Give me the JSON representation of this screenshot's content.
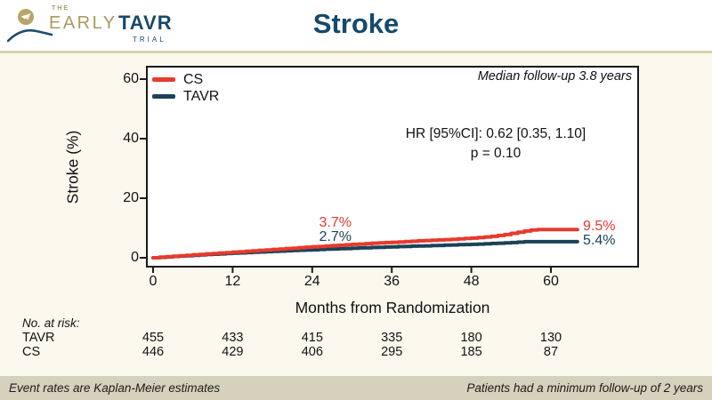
{
  "header": {
    "logo": {
      "the": "THE",
      "early": "EARLY",
      "tavr": "TAVR",
      "trial": "TRIAL"
    },
    "title": "Stroke"
  },
  "chart": {
    "ylabel": "Stroke (%)",
    "xlabel": "Months from Randomization",
    "median_note": "Median follow-up 3.8 years",
    "stats_line1": "HR [95%CI]: 0.62 [0.35, 1.10]",
    "stats_line2": "p = 0.10"
  },
  "chart_data": {
    "type": "line",
    "subtype": "kaplan-meier-step",
    "title": "Stroke",
    "xlabel": "Months from Randomization",
    "ylabel": "Stroke (%)",
    "xlim": [
      0,
      66
    ],
    "ylim": [
      0,
      60
    ],
    "xticks": [
      0,
      12,
      24,
      36,
      48,
      60
    ],
    "yticks": [
      0,
      20,
      40,
      60
    ],
    "grid": false,
    "legend_position": "top-left",
    "axis_color": "#1a1a1a",
    "series": [
      {
        "name": "CS",
        "color": "#e63b2d",
        "x": [
          0,
          1,
          2,
          3,
          4,
          5,
          6,
          7,
          8,
          9,
          10,
          11,
          12,
          13,
          14,
          15,
          16,
          17,
          18,
          19,
          20,
          21,
          22,
          23,
          24,
          25,
          26,
          27,
          28,
          29,
          30,
          31,
          32,
          33,
          34,
          35,
          36,
          37,
          38,
          39,
          40,
          41,
          42,
          43,
          44,
          45,
          46,
          47,
          48,
          49,
          50,
          51,
          52,
          53,
          54,
          55,
          56,
          57,
          58,
          64
        ],
        "y": [
          0,
          0.2,
          0.4,
          0.5,
          0.7,
          0.8,
          1.0,
          1.1,
          1.3,
          1.4,
          1.6,
          1.7,
          1.9,
          2.0,
          2.2,
          2.3,
          2.5,
          2.6,
          2.8,
          2.9,
          3.1,
          3.2,
          3.4,
          3.55,
          3.7,
          3.8,
          3.95,
          4.1,
          4.2,
          4.35,
          4.5,
          4.6,
          4.75,
          4.9,
          5.0,
          5.1,
          5.2,
          5.3,
          5.45,
          5.55,
          5.7,
          5.8,
          5.9,
          6.0,
          6.1,
          6.2,
          6.35,
          6.5,
          6.6,
          6.8,
          7.0,
          7.2,
          7.5,
          7.8,
          8.2,
          8.6,
          9.0,
          9.3,
          9.5,
          9.5
        ]
      },
      {
        "name": "TAVR",
        "color": "#1c4257",
        "x": [
          0,
          1,
          2,
          3,
          4,
          5,
          6,
          7,
          8,
          9,
          10,
          11,
          12,
          13,
          14,
          15,
          16,
          17,
          18,
          19,
          20,
          21,
          22,
          23,
          24,
          25,
          26,
          27,
          28,
          29,
          30,
          31,
          32,
          33,
          34,
          35,
          36,
          37,
          38,
          39,
          40,
          41,
          42,
          43,
          44,
          45,
          46,
          47,
          48,
          49,
          50,
          51,
          52,
          53,
          54,
          55,
          56,
          57,
          58,
          64
        ],
        "y": [
          0,
          0.15,
          0.3,
          0.45,
          0.6,
          0.7,
          0.85,
          0.95,
          1.1,
          1.2,
          1.3,
          1.45,
          1.55,
          1.65,
          1.75,
          1.85,
          1.95,
          2.05,
          2.15,
          2.25,
          2.35,
          2.45,
          2.55,
          2.6,
          2.7,
          2.8,
          2.9,
          2.95,
          3.05,
          3.1,
          3.2,
          3.3,
          3.35,
          3.45,
          3.5,
          3.6,
          3.65,
          3.75,
          3.8,
          3.9,
          3.95,
          4.0,
          4.1,
          4.15,
          4.25,
          4.3,
          4.4,
          4.45,
          4.5,
          4.6,
          4.7,
          4.8,
          4.9,
          5.0,
          5.1,
          5.25,
          5.4,
          5.4,
          5.4,
          5.4
        ]
      }
    ],
    "annotations": {
      "cs_24": "3.7%",
      "tavr_24": "2.7%",
      "cs_end": "9.5%",
      "tavr_end": "5.4%"
    }
  },
  "risk_table": {
    "title": "No. at risk:",
    "rows": [
      {
        "label": "TAVR",
        "values": [
          "455",
          "433",
          "415",
          "335",
          "180",
          "130"
        ]
      },
      {
        "label": "CS",
        "values": [
          "446",
          "429",
          "406",
          "295",
          "185",
          "87"
        ]
      }
    ]
  },
  "footer": {
    "left": "Event rates are Kaplan-Meier estimates",
    "right": "Patients had a minimum follow-up of 2 years"
  }
}
